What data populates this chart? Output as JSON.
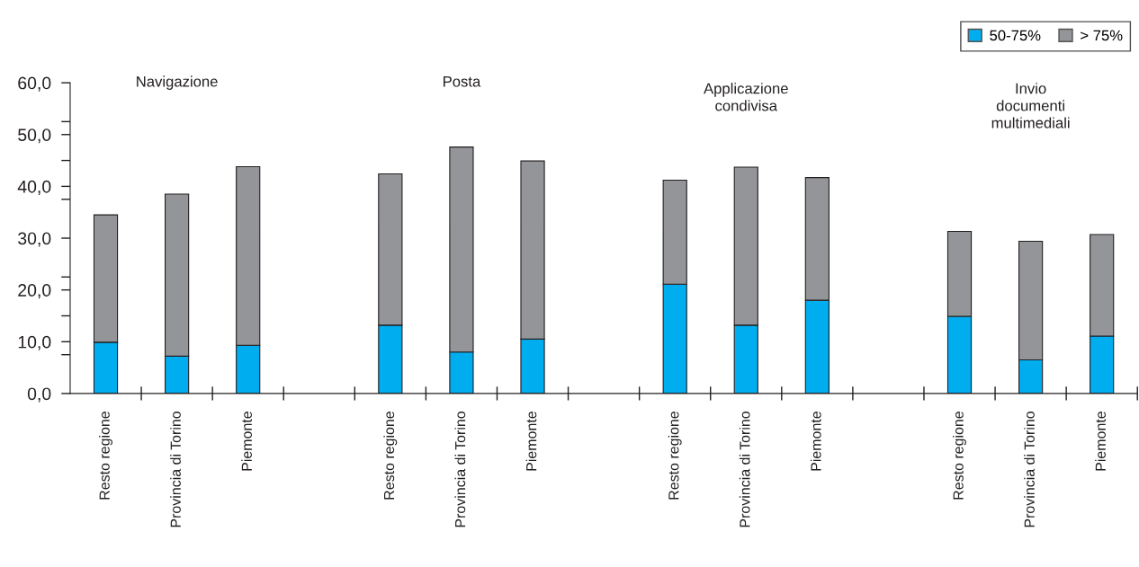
{
  "chart_data": {
    "type": "bar",
    "stacked": true,
    "categories": [
      "Resto regione",
      "Provincia di Torino",
      "Piemonte",
      null,
      "Resto regione",
      "Provincia di Torino",
      "Piemonte",
      null,
      "Resto regione",
      "Provincia di Torino",
      "Piemonte",
      null,
      "Resto regione",
      "Provincia di Torino",
      "Piemonte"
    ],
    "series": [
      {
        "name": "50-75%",
        "color": "#00adef",
        "values": [
          9.9,
          7.2,
          9.3,
          null,
          13.2,
          8.0,
          10.5,
          null,
          21.1,
          13.2,
          18.0,
          null,
          14.9,
          6.5,
          11.1
        ]
      },
      {
        "name": "> 75%",
        "color": "#939598",
        "values": [
          24.6,
          31.3,
          34.5,
          null,
          29.2,
          39.6,
          34.4,
          null,
          20.1,
          30.5,
          23.7,
          null,
          16.4,
          22.9,
          19.6
        ]
      }
    ],
    "annotations": [
      "Navigazione",
      "Posta",
      "Applicazione\ncondivisa",
      "Invio\ndocumenti\nmultimediali"
    ],
    "ylim": [
      0,
      60
    ],
    "yticks": [
      {
        "value": 0,
        "label": "0,0"
      },
      {
        "value": 7.5,
        "label": null
      },
      {
        "value": 10,
        "label": "10,0"
      },
      {
        "value": 15,
        "label": null
      },
      {
        "value": 20,
        "label": "20,0"
      },
      {
        "value": 22.5,
        "label": null
      },
      {
        "value": 30,
        "label": "30,0"
      },
      {
        "value": 37.5,
        "label": null
      },
      {
        "value": 40,
        "label": "40,0"
      },
      {
        "value": 45,
        "label": null
      },
      {
        "value": 50,
        "label": "50,0"
      },
      {
        "value": 52.5,
        "label": null
      },
      {
        "value": 60,
        "label": "60,0"
      }
    ],
    "legend": "top right",
    "grid": false
  }
}
